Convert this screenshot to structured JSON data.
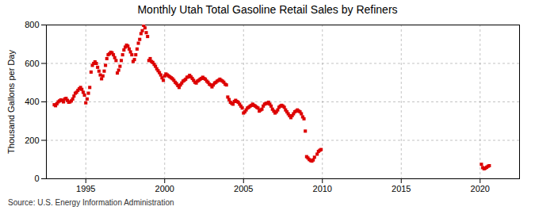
{
  "chart_data": {
    "type": "scatter",
    "title": "Monthly Utah Total Gasoline Retail Sales by Refiners",
    "ylabel": "Thousand Gallons per Day",
    "source": "Source: U.S. Energy Information Administration",
    "color": "#dd0000",
    "marker": "square",
    "grid": true,
    "xlim": [
      1992.5,
      2022.5
    ],
    "xticks": [
      1995,
      2000,
      2005,
      2010,
      2015,
      2020
    ],
    "ylim": [
      0,
      800
    ],
    "yticks": [
      0,
      200,
      400,
      600,
      800
    ],
    "x": [
      1993.0,
      1993.083,
      1993.167,
      1993.25,
      1993.333,
      1993.417,
      1993.5,
      1993.583,
      1993.667,
      1993.75,
      1993.833,
      1993.917,
      1994.0,
      1994.083,
      1994.167,
      1994.25,
      1994.333,
      1994.417,
      1994.5,
      1994.583,
      1994.667,
      1994.75,
      1994.833,
      1994.917,
      1995.0,
      1995.083,
      1995.167,
      1995.25,
      1995.333,
      1995.417,
      1995.5,
      1995.583,
      1995.667,
      1995.75,
      1995.833,
      1995.917,
      1996.0,
      1996.083,
      1996.167,
      1996.25,
      1996.333,
      1996.417,
      1996.5,
      1996.583,
      1996.667,
      1996.75,
      1996.833,
      1996.917,
      1997.0,
      1997.083,
      1997.167,
      1997.25,
      1997.333,
      1997.417,
      1997.5,
      1997.583,
      1997.667,
      1997.75,
      1997.833,
      1997.917,
      1998.0,
      1998.083,
      1998.167,
      1998.25,
      1998.333,
      1998.417,
      1998.5,
      1998.583,
      1998.667,
      1998.75,
      1998.833,
      1998.917,
      1999.0,
      1999.083,
      1999.167,
      1999.25,
      1999.333,
      1999.417,
      1999.5,
      1999.583,
      1999.667,
      1999.75,
      1999.833,
      1999.917,
      2000.0,
      2000.083,
      2000.167,
      2000.25,
      2000.333,
      2000.417,
      2000.5,
      2000.583,
      2000.667,
      2000.75,
      2000.833,
      2000.917,
      2001.0,
      2001.083,
      2001.167,
      2001.25,
      2001.333,
      2001.417,
      2001.5,
      2001.583,
      2001.667,
      2001.75,
      2001.833,
      2001.917,
      2002.0,
      2002.083,
      2002.167,
      2002.25,
      2002.333,
      2002.417,
      2002.5,
      2002.583,
      2002.667,
      2002.75,
      2002.833,
      2002.917,
      2003.0,
      2003.083,
      2003.167,
      2003.25,
      2003.333,
      2003.417,
      2003.5,
      2003.583,
      2003.667,
      2003.75,
      2003.833,
      2003.917,
      2004.0,
      2004.083,
      2004.167,
      2004.25,
      2004.333,
      2004.417,
      2004.5,
      2004.583,
      2004.667,
      2004.75,
      2004.833,
      2004.917,
      2005.0,
      2005.083,
      2005.167,
      2005.25,
      2005.333,
      2005.417,
      2005.5,
      2005.583,
      2005.667,
      2005.75,
      2005.833,
      2005.917,
      2006.0,
      2006.083,
      2006.167,
      2006.25,
      2006.333,
      2006.417,
      2006.5,
      2006.583,
      2006.667,
      2006.75,
      2006.833,
      2006.917,
      2007.0,
      2007.083,
      2007.167,
      2007.25,
      2007.333,
      2007.417,
      2007.5,
      2007.583,
      2007.667,
      2007.75,
      2007.833,
      2007.917,
      2008.0,
      2008.083,
      2008.167,
      2008.25,
      2008.333,
      2008.417,
      2008.5,
      2008.583,
      2008.667,
      2008.75,
      2008.833,
      2008.917,
      2009.0,
      2009.083,
      2009.167,
      2009.25,
      2009.333,
      2009.417,
      2009.5,
      2009.667,
      2009.75,
      2009.833,
      2009.917,
      2020.083,
      2020.167,
      2020.25,
      2020.333,
      2020.417,
      2020.5,
      2020.583
    ],
    "values": [
      385,
      380,
      390,
      400,
      405,
      410,
      408,
      400,
      415,
      418,
      408,
      398,
      400,
      405,
      415,
      430,
      445,
      450,
      460,
      468,
      475,
      465,
      450,
      435,
      395,
      415,
      445,
      475,
      555,
      590,
      600,
      608,
      600,
      580,
      560,
      540,
      520,
      535,
      560,
      590,
      625,
      645,
      650,
      658,
      655,
      645,
      630,
      615,
      550,
      565,
      585,
      615,
      645,
      670,
      685,
      695,
      690,
      675,
      660,
      645,
      610,
      620,
      645,
      675,
      705,
      725,
      755,
      770,
      798,
      785,
      760,
      740,
      615,
      625,
      610,
      605,
      595,
      585,
      572,
      562,
      552,
      540,
      525,
      512,
      535,
      545,
      540,
      535,
      530,
      525,
      520,
      512,
      502,
      495,
      485,
      475,
      488,
      498,
      508,
      512,
      518,
      528,
      530,
      538,
      530,
      522,
      512,
      502,
      498,
      508,
      512,
      518,
      522,
      528,
      522,
      518,
      508,
      502,
      492,
      488,
      478,
      488,
      498,
      502,
      508,
      512,
      518,
      512,
      508,
      502,
      492,
      488,
      425,
      412,
      398,
      392,
      388,
      402,
      408,
      402,
      398,
      388,
      378,
      368,
      342,
      348,
      358,
      368,
      372,
      378,
      382,
      388,
      382,
      378,
      372,
      368,
      352,
      358,
      362,
      378,
      388,
      392,
      392,
      398,
      388,
      378,
      362,
      352,
      342,
      348,
      358,
      372,
      378,
      382,
      378,
      372,
      358,
      348,
      338,
      328,
      318,
      328,
      338,
      348,
      352,
      358,
      352,
      348,
      338,
      322,
      312,
      248,
      115,
      108,
      100,
      95,
      92,
      98,
      112,
      128,
      142,
      148,
      152,
      75,
      58,
      52,
      55,
      60,
      65,
      68
    ]
  }
}
